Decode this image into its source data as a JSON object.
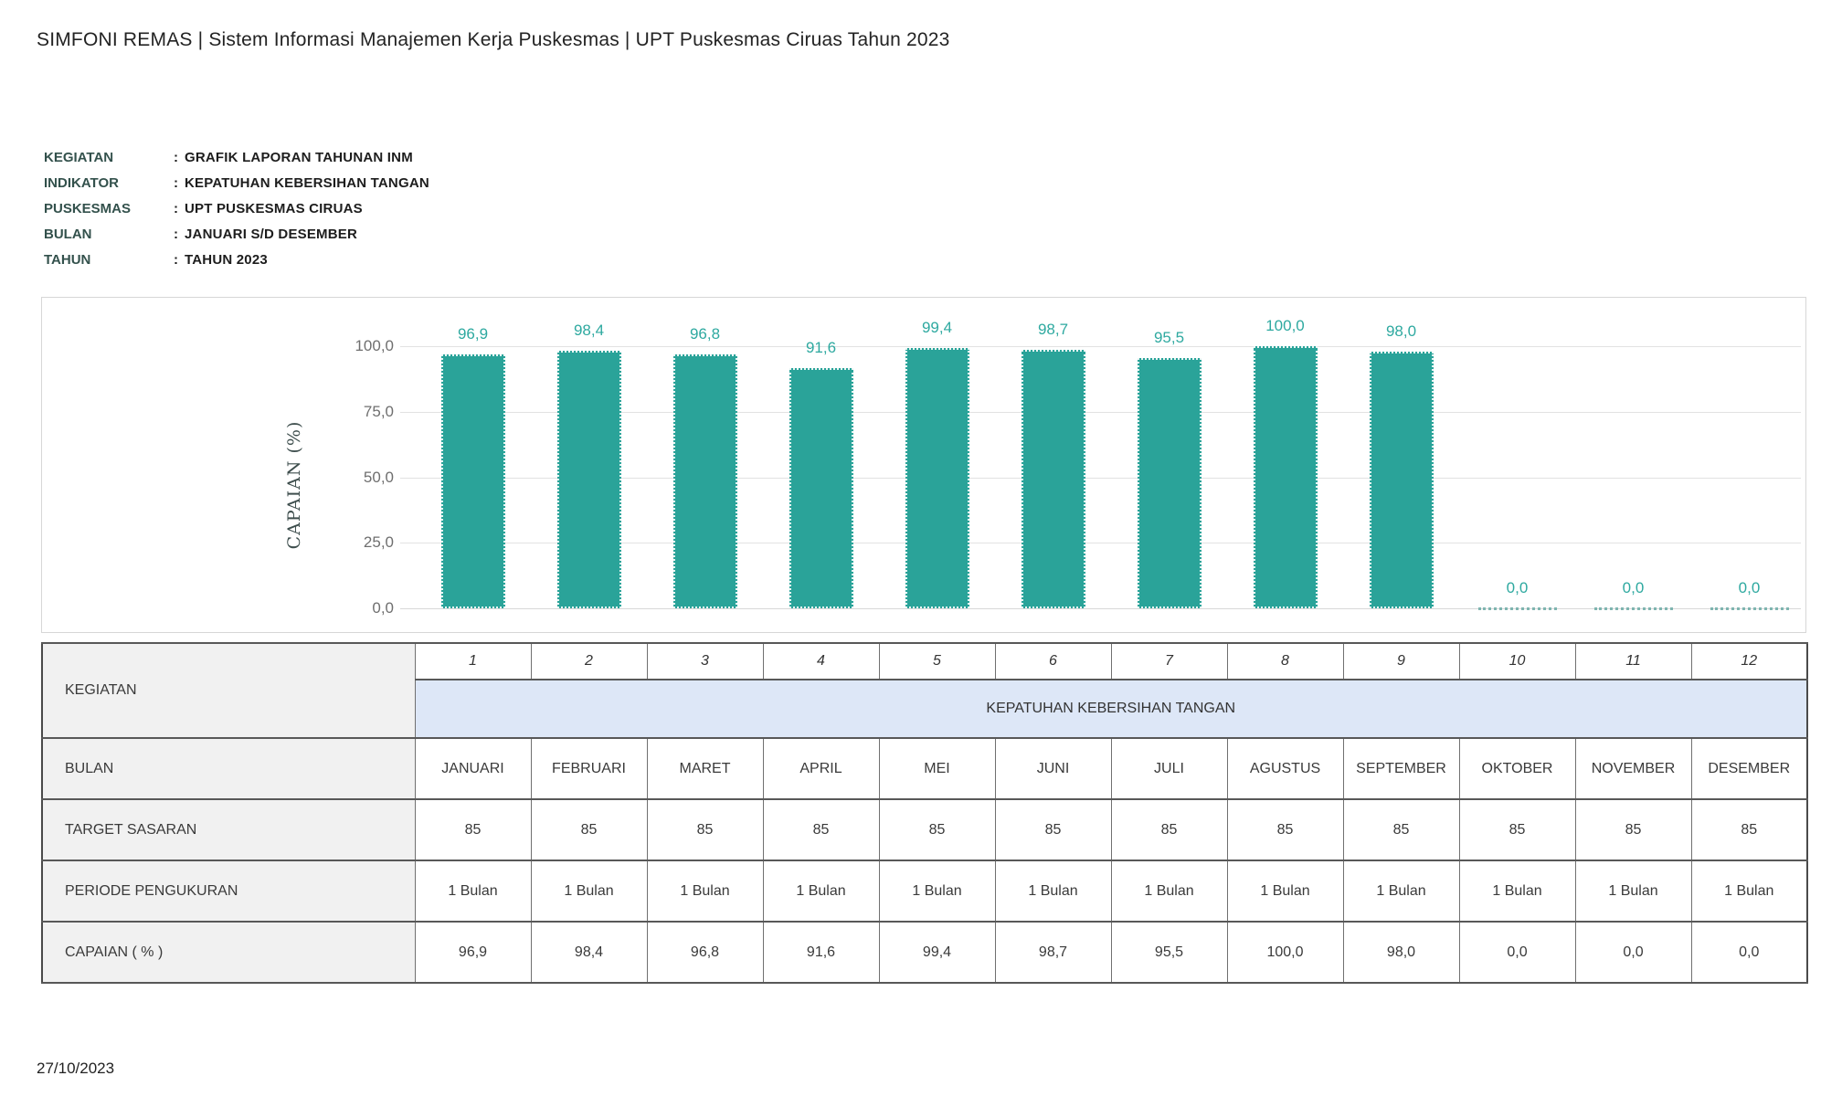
{
  "header": {
    "title": "SIMFONI REMAS | Sistem Informasi Manajemen Kerja Puskesmas | UPT Puskesmas Ciruas Tahun 2023"
  },
  "meta": {
    "colon": ":",
    "rows": [
      {
        "label": "KEGIATAN",
        "value": "GRAFIK LAPORAN TAHUNAN INM"
      },
      {
        "label": "INDIKATOR",
        "value": "KEPATUHAN KEBERSIHAN TANGAN"
      },
      {
        "label": "PUSKESMAS",
        "value": "UPT PUSKESMAS CIRUAS"
      },
      {
        "label": "BULAN",
        "value": "JANUARI S/D DESEMBER"
      },
      {
        "label": "TAHUN",
        "value": "TAHUN 2023"
      }
    ]
  },
  "chart_data": {
    "type": "bar",
    "title": "",
    "xlabel": "",
    "ylabel": "CAPAIAN (%)",
    "ylim": [
      0,
      100
    ],
    "grid": true,
    "legend_position": "none",
    "yticks": [
      0,
      25,
      50,
      75,
      100
    ],
    "ytick_labels": [
      "0,0",
      "25,0",
      "50,0",
      "75,0",
      "100,0"
    ],
    "categories": [
      "JANUARI",
      "FEBRUARI",
      "MARET",
      "APRIL",
      "MEI",
      "JUNI",
      "JULI",
      "AGUSTUS",
      "SEPTEMBER",
      "OKTOBER",
      "NOVEMBER",
      "DESEMBER"
    ],
    "values": [
      96.9,
      98.4,
      96.8,
      91.6,
      99.4,
      98.7,
      95.5,
      100.0,
      98.0,
      0.0,
      0.0,
      0.0
    ],
    "value_labels": [
      "96,9",
      "98,4",
      "96,8",
      "91,6",
      "99,4",
      "98,7",
      "95,5",
      "100,0",
      "98,0",
      "0,0",
      "0,0",
      "0,0"
    ],
    "bar_color": "#2aa399",
    "value_label_color": "#2ea9a0"
  },
  "table": {
    "row_labels": {
      "kegiatan": "KEGIATAN",
      "bulan": "BULAN",
      "target": "TARGET SASARAN",
      "periode": "PERIODE PENGUKURAN",
      "capaian": "CAPAIAN ( % )"
    },
    "numbers": [
      "1",
      "2",
      "3",
      "4",
      "5",
      "6",
      "7",
      "8",
      "9",
      "10",
      "11",
      "12"
    ],
    "kegiatan_value": "KEPATUHAN KEBERSIHAN TANGAN",
    "months": [
      "JANUARI",
      "FEBRUARI",
      "MARET",
      "APRIL",
      "MEI",
      "JUNI",
      "JULI",
      "AGUSTUS",
      "SEPTEMBER",
      "OKTOBER",
      "NOVEMBER",
      "DESEMBER"
    ],
    "targets": [
      "85",
      "85",
      "85",
      "85",
      "85",
      "85",
      "85",
      "85",
      "85",
      "85",
      "85",
      "85"
    ],
    "periods": [
      "1 Bulan",
      "1 Bulan",
      "1 Bulan",
      "1 Bulan",
      "1 Bulan",
      "1 Bulan",
      "1 Bulan",
      "1 Bulan",
      "1 Bulan",
      "1 Bulan",
      "1 Bulan",
      "1 Bulan"
    ],
    "capaian": [
      "96,9",
      "98,4",
      "96,8",
      "91,6",
      "99,4",
      "98,7",
      "95,5",
      "100,0",
      "98,0",
      "0,0",
      "0,0",
      "0,0"
    ]
  },
  "footer": {
    "date": "27/10/2023"
  }
}
